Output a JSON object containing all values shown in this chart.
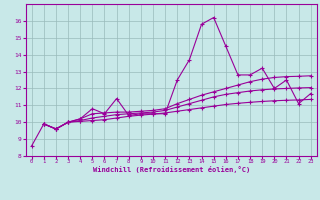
{
  "xlabel": "Windchill (Refroidissement éolien,°C)",
  "background_color": "#c8e8e8",
  "line_color": "#990099",
  "grid_color": "#99bbbb",
  "ylim": [
    8,
    17
  ],
  "xlim": [
    -0.5,
    23.5
  ],
  "yticks": [
    8,
    9,
    10,
    11,
    12,
    13,
    14,
    15,
    16
  ],
  "xticks": [
    0,
    1,
    2,
    3,
    4,
    5,
    6,
    7,
    8,
    9,
    10,
    11,
    12,
    13,
    14,
    15,
    16,
    17,
    18,
    19,
    20,
    21,
    22,
    23
  ],
  "series": [
    {
      "x": [
        0,
        1,
        2,
        3,
        4,
        5,
        6,
        7,
        8,
        9,
        10,
        11,
        12,
        13,
        14,
        15,
        16,
        17,
        18,
        19,
        20,
        21,
        22,
        23
      ],
      "y": [
        8.6,
        9.9,
        9.6,
        10.0,
        10.2,
        10.8,
        10.5,
        11.4,
        10.4,
        10.5,
        10.5,
        10.5,
        12.5,
        13.7,
        15.8,
        16.2,
        14.5,
        12.8,
        12.8,
        13.2,
        12.0,
        12.5,
        11.1,
        11.7
      ]
    },
    {
      "x": [
        1,
        2,
        3,
        4,
        5,
        6,
        7,
        8,
        9,
        10,
        11,
        12,
        13,
        14,
        15,
        16,
        17,
        18,
        19,
        20,
        21,
        22,
        23
      ],
      "y": [
        9.9,
        9.6,
        10.0,
        10.2,
        10.5,
        10.55,
        10.6,
        10.6,
        10.65,
        10.7,
        10.8,
        11.1,
        11.35,
        11.6,
        11.8,
        12.0,
        12.2,
        12.4,
        12.55,
        12.65,
        12.7,
        12.72,
        12.75
      ]
    },
    {
      "x": [
        1,
        2,
        3,
        4,
        5,
        6,
        7,
        8,
        9,
        10,
        11,
        12,
        13,
        14,
        15,
        16,
        17,
        18,
        19,
        20,
        21,
        22,
        23
      ],
      "y": [
        9.9,
        9.6,
        10.0,
        10.1,
        10.25,
        10.35,
        10.45,
        10.5,
        10.55,
        10.6,
        10.7,
        10.9,
        11.1,
        11.3,
        11.5,
        11.65,
        11.75,
        11.85,
        11.92,
        11.97,
        12.0,
        12.03,
        12.05
      ]
    },
    {
      "x": [
        1,
        2,
        3,
        4,
        5,
        6,
        7,
        8,
        9,
        10,
        11,
        12,
        13,
        14,
        15,
        16,
        17,
        18,
        19,
        20,
        21,
        22,
        23
      ],
      "y": [
        9.9,
        9.6,
        10.0,
        10.05,
        10.1,
        10.15,
        10.25,
        10.35,
        10.42,
        10.48,
        10.55,
        10.65,
        10.75,
        10.85,
        10.95,
        11.05,
        11.12,
        11.18,
        11.23,
        11.27,
        11.3,
        11.32,
        11.35
      ]
    }
  ]
}
